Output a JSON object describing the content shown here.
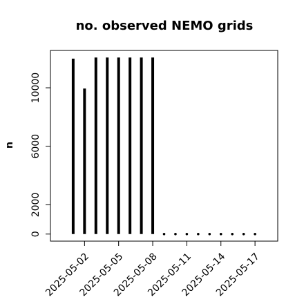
{
  "chart_data": {
    "type": "bar",
    "title": "no. observed NEMO grids",
    "ylabel": "n",
    "x": [
      "2025-05-01",
      "2025-05-02",
      "2025-05-03",
      "2025-05-04",
      "2025-05-05",
      "2025-05-06",
      "2025-05-07",
      "2025-05-08",
      "2025-05-09",
      "2025-05-10",
      "2025-05-11",
      "2025-05-12",
      "2025-05-13",
      "2025-05-14",
      "2025-05-15",
      "2025-05-16",
      "2025-05-17"
    ],
    "values": [
      11990,
      9950,
      12070,
      12070,
      12070,
      12070,
      12070,
      12070,
      0,
      0,
      0,
      0,
      0,
      0,
      0,
      0,
      0
    ],
    "color": "#000000",
    "xlim": [
      "2025-04-29",
      "2025-05-19"
    ],
    "xticks": [
      "2025-05-02",
      "2025-05-05",
      "2025-05-08",
      "2025-05-11",
      "2025-05-14",
      "2025-05-17"
    ],
    "ylim": [
      -483,
      12553
    ],
    "yticks": [
      0,
      2000,
      6000,
      10000
    ]
  }
}
